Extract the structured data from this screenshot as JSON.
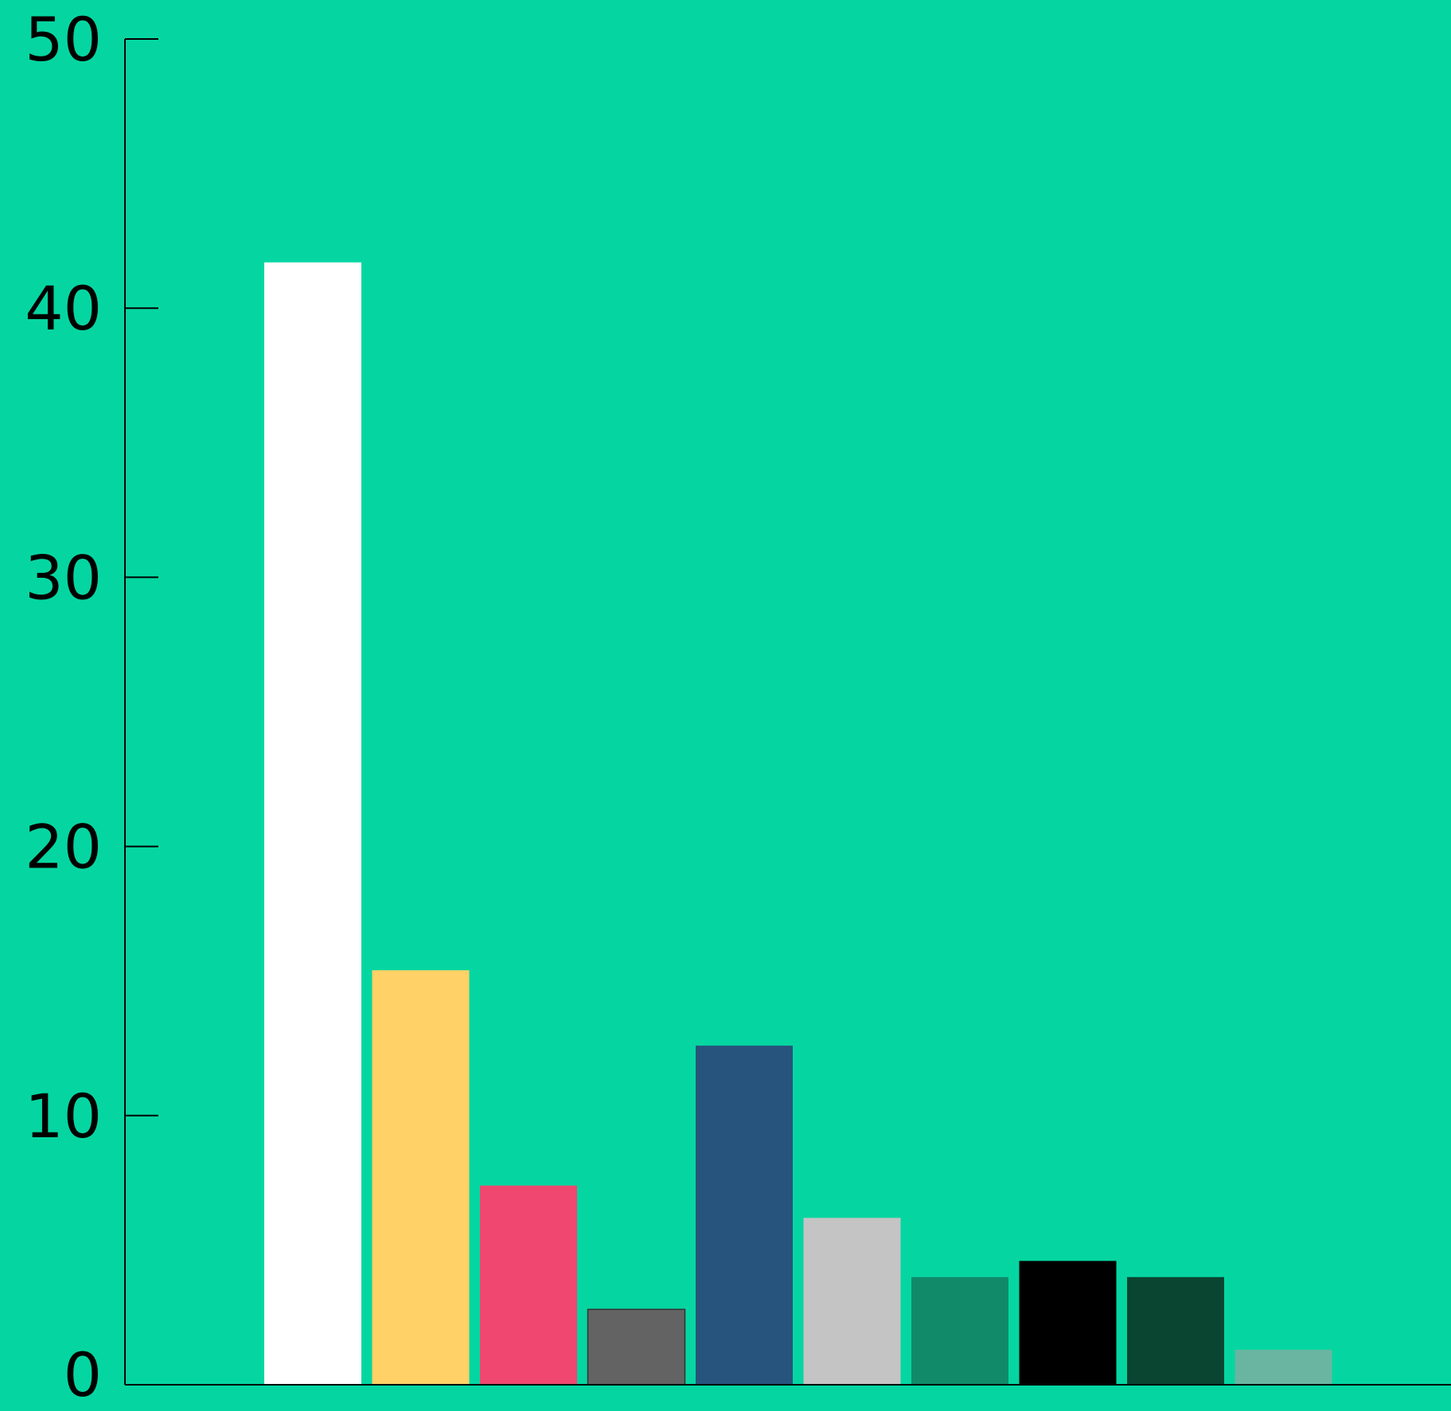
{
  "chart_data": {
    "type": "bar",
    "title": "",
    "xlabel": "",
    "ylabel": "",
    "ylim": [
      0,
      50
    ],
    "yticks": [
      0,
      10,
      20,
      30,
      40,
      50
    ],
    "grid": false,
    "legend": "none",
    "background_color": "#05d6a1",
    "values": [
      41.7,
      15.4,
      7.4,
      2.8,
      12.6,
      6.2,
      4.0,
      4.6,
      4.0,
      1.3
    ],
    "colors": [
      "#ffffff",
      "#ffd166",
      "#ef476f",
      "#636363",
      "#26547c",
      "#c4c4c4",
      "#118a6a",
      "#000000",
      "#0a4532",
      "#6ab5a1"
    ]
  }
}
